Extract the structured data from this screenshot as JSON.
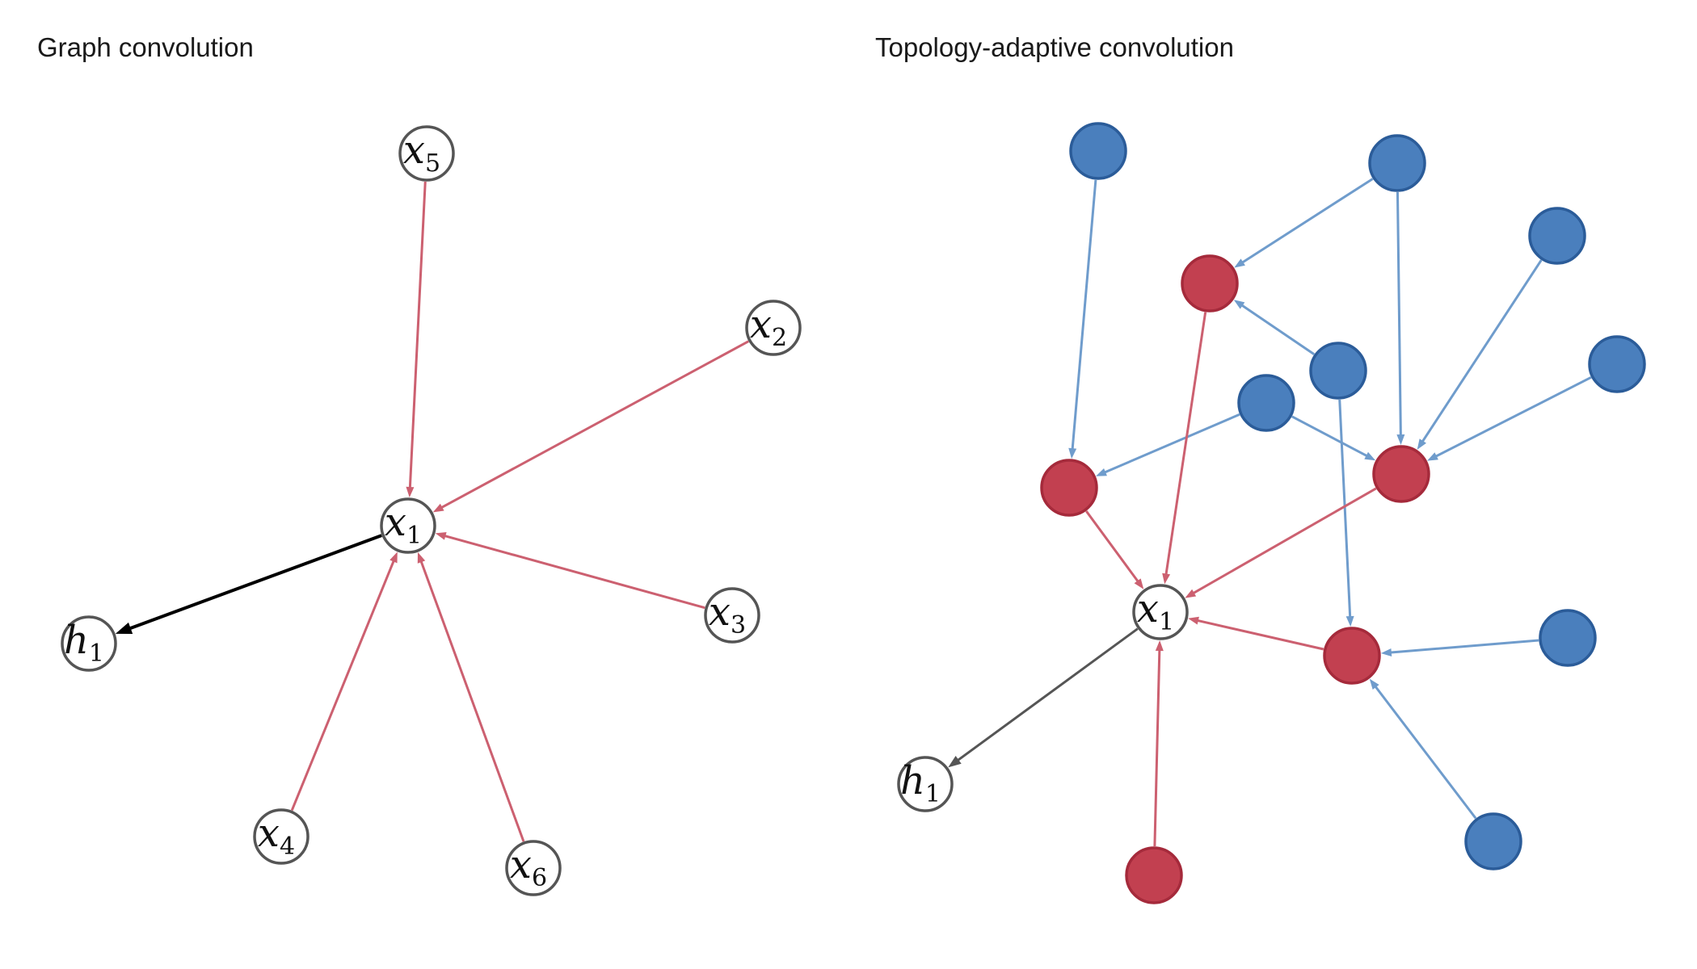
{
  "panels": {
    "left": {
      "title": "Graph convolution"
    },
    "right": {
      "title": "Topology-adaptive convolution"
    }
  },
  "colors": {
    "node_stroke": "#555555",
    "red_fill": "#c24050",
    "red_stroke": "#a52a3b",
    "blue_fill": "#4a7fbd",
    "blue_stroke": "#2b5c99",
    "red_edge": "#cc6070",
    "blue_edge": "#6f9ccc",
    "black_edge": "#000000",
    "dark_edge": "#555555"
  },
  "labels": {
    "x1": {
      "base": "x",
      "sub": "1"
    },
    "x2": {
      "base": "x",
      "sub": "2"
    },
    "x3": {
      "base": "x",
      "sub": "3"
    },
    "x4": {
      "base": "x",
      "sub": "4"
    },
    "x5": {
      "base": "x",
      "sub": "5"
    },
    "x6": {
      "base": "x",
      "sub": "6"
    },
    "h1": {
      "base": "h",
      "sub": "1"
    }
  },
  "graphs": {
    "left": {
      "nodes": [
        {
          "id": "x1",
          "kind": "labeled",
          "label": "x1"
        },
        {
          "id": "x2",
          "kind": "labeled",
          "label": "x2"
        },
        {
          "id": "x3",
          "kind": "labeled",
          "label": "x3"
        },
        {
          "id": "x4",
          "kind": "labeled",
          "label": "x4"
        },
        {
          "id": "x5",
          "kind": "labeled",
          "label": "x5"
        },
        {
          "id": "x6",
          "kind": "labeled",
          "label": "x6"
        },
        {
          "id": "h1",
          "kind": "labeled",
          "label": "h1"
        }
      ],
      "edges": [
        {
          "from": "x5",
          "to": "x1",
          "color": "red"
        },
        {
          "from": "x2",
          "to": "x1",
          "color": "red"
        },
        {
          "from": "x3",
          "to": "x1",
          "color": "red"
        },
        {
          "from": "x4",
          "to": "x1",
          "color": "red"
        },
        {
          "from": "x6",
          "to": "x1",
          "color": "red"
        },
        {
          "from": "x1",
          "to": "h1",
          "color": "black"
        }
      ]
    },
    "right": {
      "nodes": [
        {
          "id": "rx1",
          "kind": "labeled",
          "label": "x1"
        },
        {
          "id": "rh1",
          "kind": "labeled",
          "label": "h1"
        },
        {
          "id": "r1",
          "kind": "red"
        },
        {
          "id": "r2",
          "kind": "red"
        },
        {
          "id": "r3",
          "kind": "red"
        },
        {
          "id": "r4",
          "kind": "red"
        },
        {
          "id": "r5",
          "kind": "red"
        },
        {
          "id": "b1",
          "kind": "blue"
        },
        {
          "id": "b2",
          "kind": "blue"
        },
        {
          "id": "b3",
          "kind": "blue"
        },
        {
          "id": "b4",
          "kind": "blue"
        },
        {
          "id": "b5",
          "kind": "blue"
        },
        {
          "id": "b6",
          "kind": "blue"
        },
        {
          "id": "b7",
          "kind": "blue"
        },
        {
          "id": "b8",
          "kind": "blue"
        }
      ],
      "edges": [
        {
          "from": "b1",
          "to": "r2",
          "color": "blue"
        },
        {
          "from": "b2",
          "to": "r1",
          "color": "blue"
        },
        {
          "from": "b2",
          "to": "r3",
          "color": "blue"
        },
        {
          "from": "b3",
          "to": "r3",
          "color": "blue"
        },
        {
          "from": "b4",
          "to": "r1",
          "color": "blue"
        },
        {
          "from": "b4",
          "to": "r4",
          "color": "blue"
        },
        {
          "from": "b5",
          "to": "r3",
          "color": "blue"
        },
        {
          "from": "b6",
          "to": "r2",
          "color": "blue"
        },
        {
          "from": "b6",
          "to": "r3",
          "color": "blue"
        },
        {
          "from": "b7",
          "to": "r4",
          "color": "blue"
        },
        {
          "from": "b8",
          "to": "r4",
          "color": "blue"
        },
        {
          "from": "r1",
          "to": "rx1",
          "color": "red"
        },
        {
          "from": "r2",
          "to": "rx1",
          "color": "red"
        },
        {
          "from": "r3",
          "to": "rx1",
          "color": "red"
        },
        {
          "from": "r4",
          "to": "rx1",
          "color": "red"
        },
        {
          "from": "r5",
          "to": "rx1",
          "color": "red"
        },
        {
          "from": "rx1",
          "to": "rh1",
          "color": "dark"
        }
      ]
    }
  }
}
